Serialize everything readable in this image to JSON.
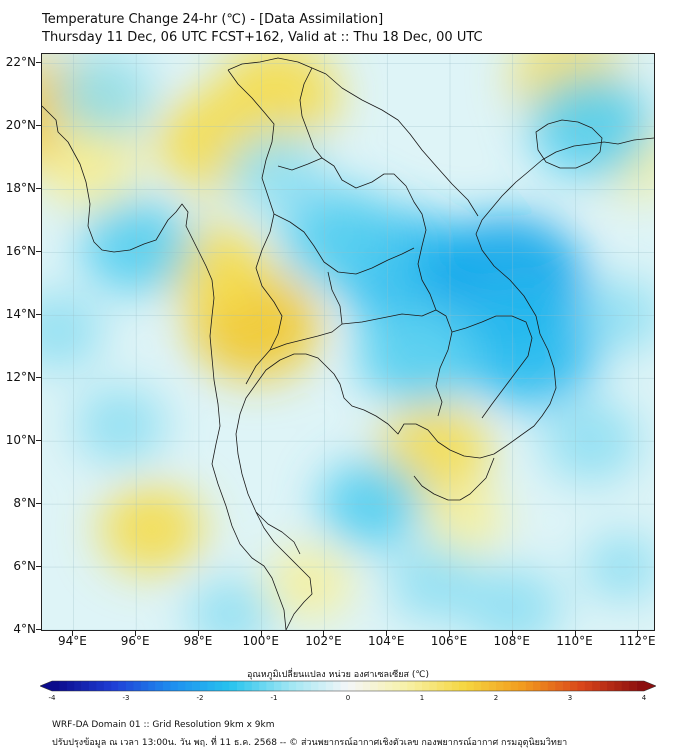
{
  "title": {
    "line1": "Temperature Change 24-hr (℃) - [Data Assimilation]",
    "line2": "Thursday 11 Dec, 06 UTC FCST+162, Valid at :: Thu 18 Dec, 00 UTC"
  },
  "axes": {
    "lat_labels": [
      "22°N",
      "20°N",
      "18°N",
      "16°N",
      "14°N",
      "12°N",
      "10°N",
      "8°N",
      "6°N",
      "4°N"
    ],
    "lon_labels": [
      "94°E",
      "96°E",
      "98°E",
      "100°E",
      "102°E",
      "104°E",
      "106°E",
      "108°E",
      "110°E",
      "112°E"
    ],
    "lat_range": [
      4,
      22.3
    ],
    "lon_range": [
      93,
      112.5
    ]
  },
  "colorbar": {
    "title": "อุณหภูมิเปลี่ยนแปลง หน่วย องศาเซลเซียส (℃)",
    "ticks": [
      "-4",
      "-3",
      "-2",
      "-1",
      "0",
      "1",
      "2",
      "3",
      "4"
    ],
    "range": [
      -4,
      4
    ],
    "colors": [
      "#0b0b8c",
      "#1f3fd6",
      "#1e8ff0",
      "#28c4ee",
      "#9fe6f3",
      "#f4f6f8",
      "#f7f1a8",
      "#f5d640",
      "#f29a1e",
      "#d9451a",
      "#8c0f0f"
    ]
  },
  "footer": {
    "line1": "WRF-DA Domain 01 :: Grid Resolution 9km x 9km",
    "line2": "ปรับปรุงข้อมูล ณ เวลา 13:00น. วัน พฤ. ที่ 11 ธ.ค. 2568 -- © ส่วนพยากรณ์อากาศเชิงตัวเลข กองพยากรณ์อากาศ กรมอุตุนิยมวิทยา"
  },
  "anomalies": [
    {
      "lon": 93.8,
      "lat": 20.3,
      "value": 1.3
    },
    {
      "lon": 94.5,
      "lat": 18.7,
      "value": 0.6
    },
    {
      "lon": 98.5,
      "lat": 19.5,
      "value": 0.9
    },
    {
      "lon": 100.5,
      "lat": 21.0,
      "value": 1.0
    },
    {
      "lon": 99.8,
      "lat": 13.7,
      "value": 1.1
    },
    {
      "lon": 98.5,
      "lat": 15.5,
      "value": 0.7
    },
    {
      "lon": 105.5,
      "lat": 9.7,
      "value": 0.8
    },
    {
      "lon": 96.5,
      "lat": 7.2,
      "value": 0.7
    },
    {
      "lon": 101.5,
      "lat": 5.5,
      "value": 0.4
    },
    {
      "lon": 106.5,
      "lat": 7.5,
      "value": 0.3
    },
    {
      "lon": 109.8,
      "lat": 21.5,
      "value": 0.8
    },
    {
      "lon": 112.0,
      "lat": 19.0,
      "value": 0.5
    },
    {
      "lon": 104.5,
      "lat": 15.5,
      "value": -1.2
    },
    {
      "lon": 107.8,
      "lat": 15.0,
      "value": -1.6
    },
    {
      "lon": 108.5,
      "lat": 13.0,
      "value": -1.3
    },
    {
      "lon": 105.0,
      "lat": 12.8,
      "value": -1.0
    },
    {
      "lon": 102.5,
      "lat": 16.5,
      "value": -0.9
    },
    {
      "lon": 100.5,
      "lat": 18.5,
      "value": -0.6
    },
    {
      "lon": 110.5,
      "lat": 20.0,
      "value": -1.0
    },
    {
      "lon": 96.0,
      "lat": 16.2,
      "value": -0.8
    },
    {
      "lon": 95.0,
      "lat": 21.0,
      "value": -0.6
    },
    {
      "lon": 95.5,
      "lat": 10.5,
      "value": -0.5
    },
    {
      "lon": 103.5,
      "lat": 8.0,
      "value": -0.7
    },
    {
      "lon": 105.5,
      "lat": 5.5,
      "value": -0.5
    },
    {
      "lon": 99.0,
      "lat": 4.5,
      "value": -0.4
    },
    {
      "lon": 108.0,
      "lat": 4.7,
      "value": -0.6
    },
    {
      "lon": 110.5,
      "lat": 10.0,
      "value": -0.6
    },
    {
      "lon": 111.5,
      "lat": 14.0,
      "value": -0.4
    },
    {
      "lon": 93.5,
      "lat": 13.5,
      "value": -0.5
    },
    {
      "lon": 111.5,
      "lat": 6.0,
      "value": -0.3
    }
  ]
}
